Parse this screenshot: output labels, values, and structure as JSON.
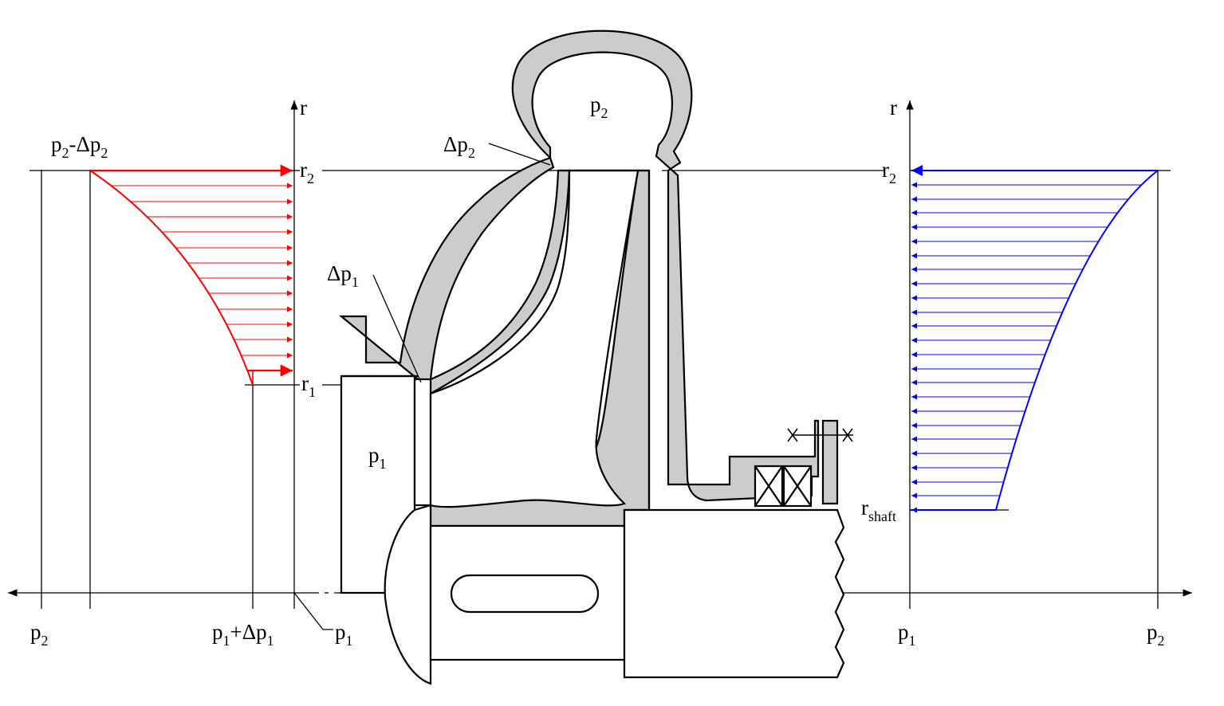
{
  "labels": {
    "volute_pressure": {
      "main": "p",
      "sub": "2"
    },
    "volute_loss": {
      "prefix": "Δp",
      "sub": "2"
    },
    "inlet_loss": {
      "prefix": "Δp",
      "sub": "1"
    },
    "inlet_pressure": {
      "main": "p",
      "sub": "1"
    },
    "left_r_axis": "r",
    "left_r2": {
      "main": "r",
      "sub": "2"
    },
    "left_r1": {
      "main": "r",
      "sub": "1"
    },
    "left_top_value": {
      "a": "p",
      "a_sub": "2",
      "mid": "-Δp",
      "b_sub": "2"
    },
    "left_bottom_p2": {
      "main": "p",
      "sub": "2"
    },
    "left_bottom_p1_plus": {
      "a": "p",
      "a_sub": "1",
      "mid": "+Δp",
      "b_sub": "1"
    },
    "left_bottom_p1": {
      "main": "p",
      "sub": "1"
    },
    "right_r_axis": "r",
    "right_r2": {
      "main": "r",
      "sub": "2"
    },
    "right_rshaft": {
      "main": "r",
      "sub": "shaft"
    },
    "right_bottom_p1": {
      "main": "p",
      "sub": "1"
    },
    "right_bottom_p2": {
      "main": "p",
      "sub": "2"
    }
  },
  "colors": {
    "left_distribution": "#ff0000",
    "right_distribution": "#0000ff",
    "hatch_fill": "#cccccc",
    "outline": "#000000"
  }
}
